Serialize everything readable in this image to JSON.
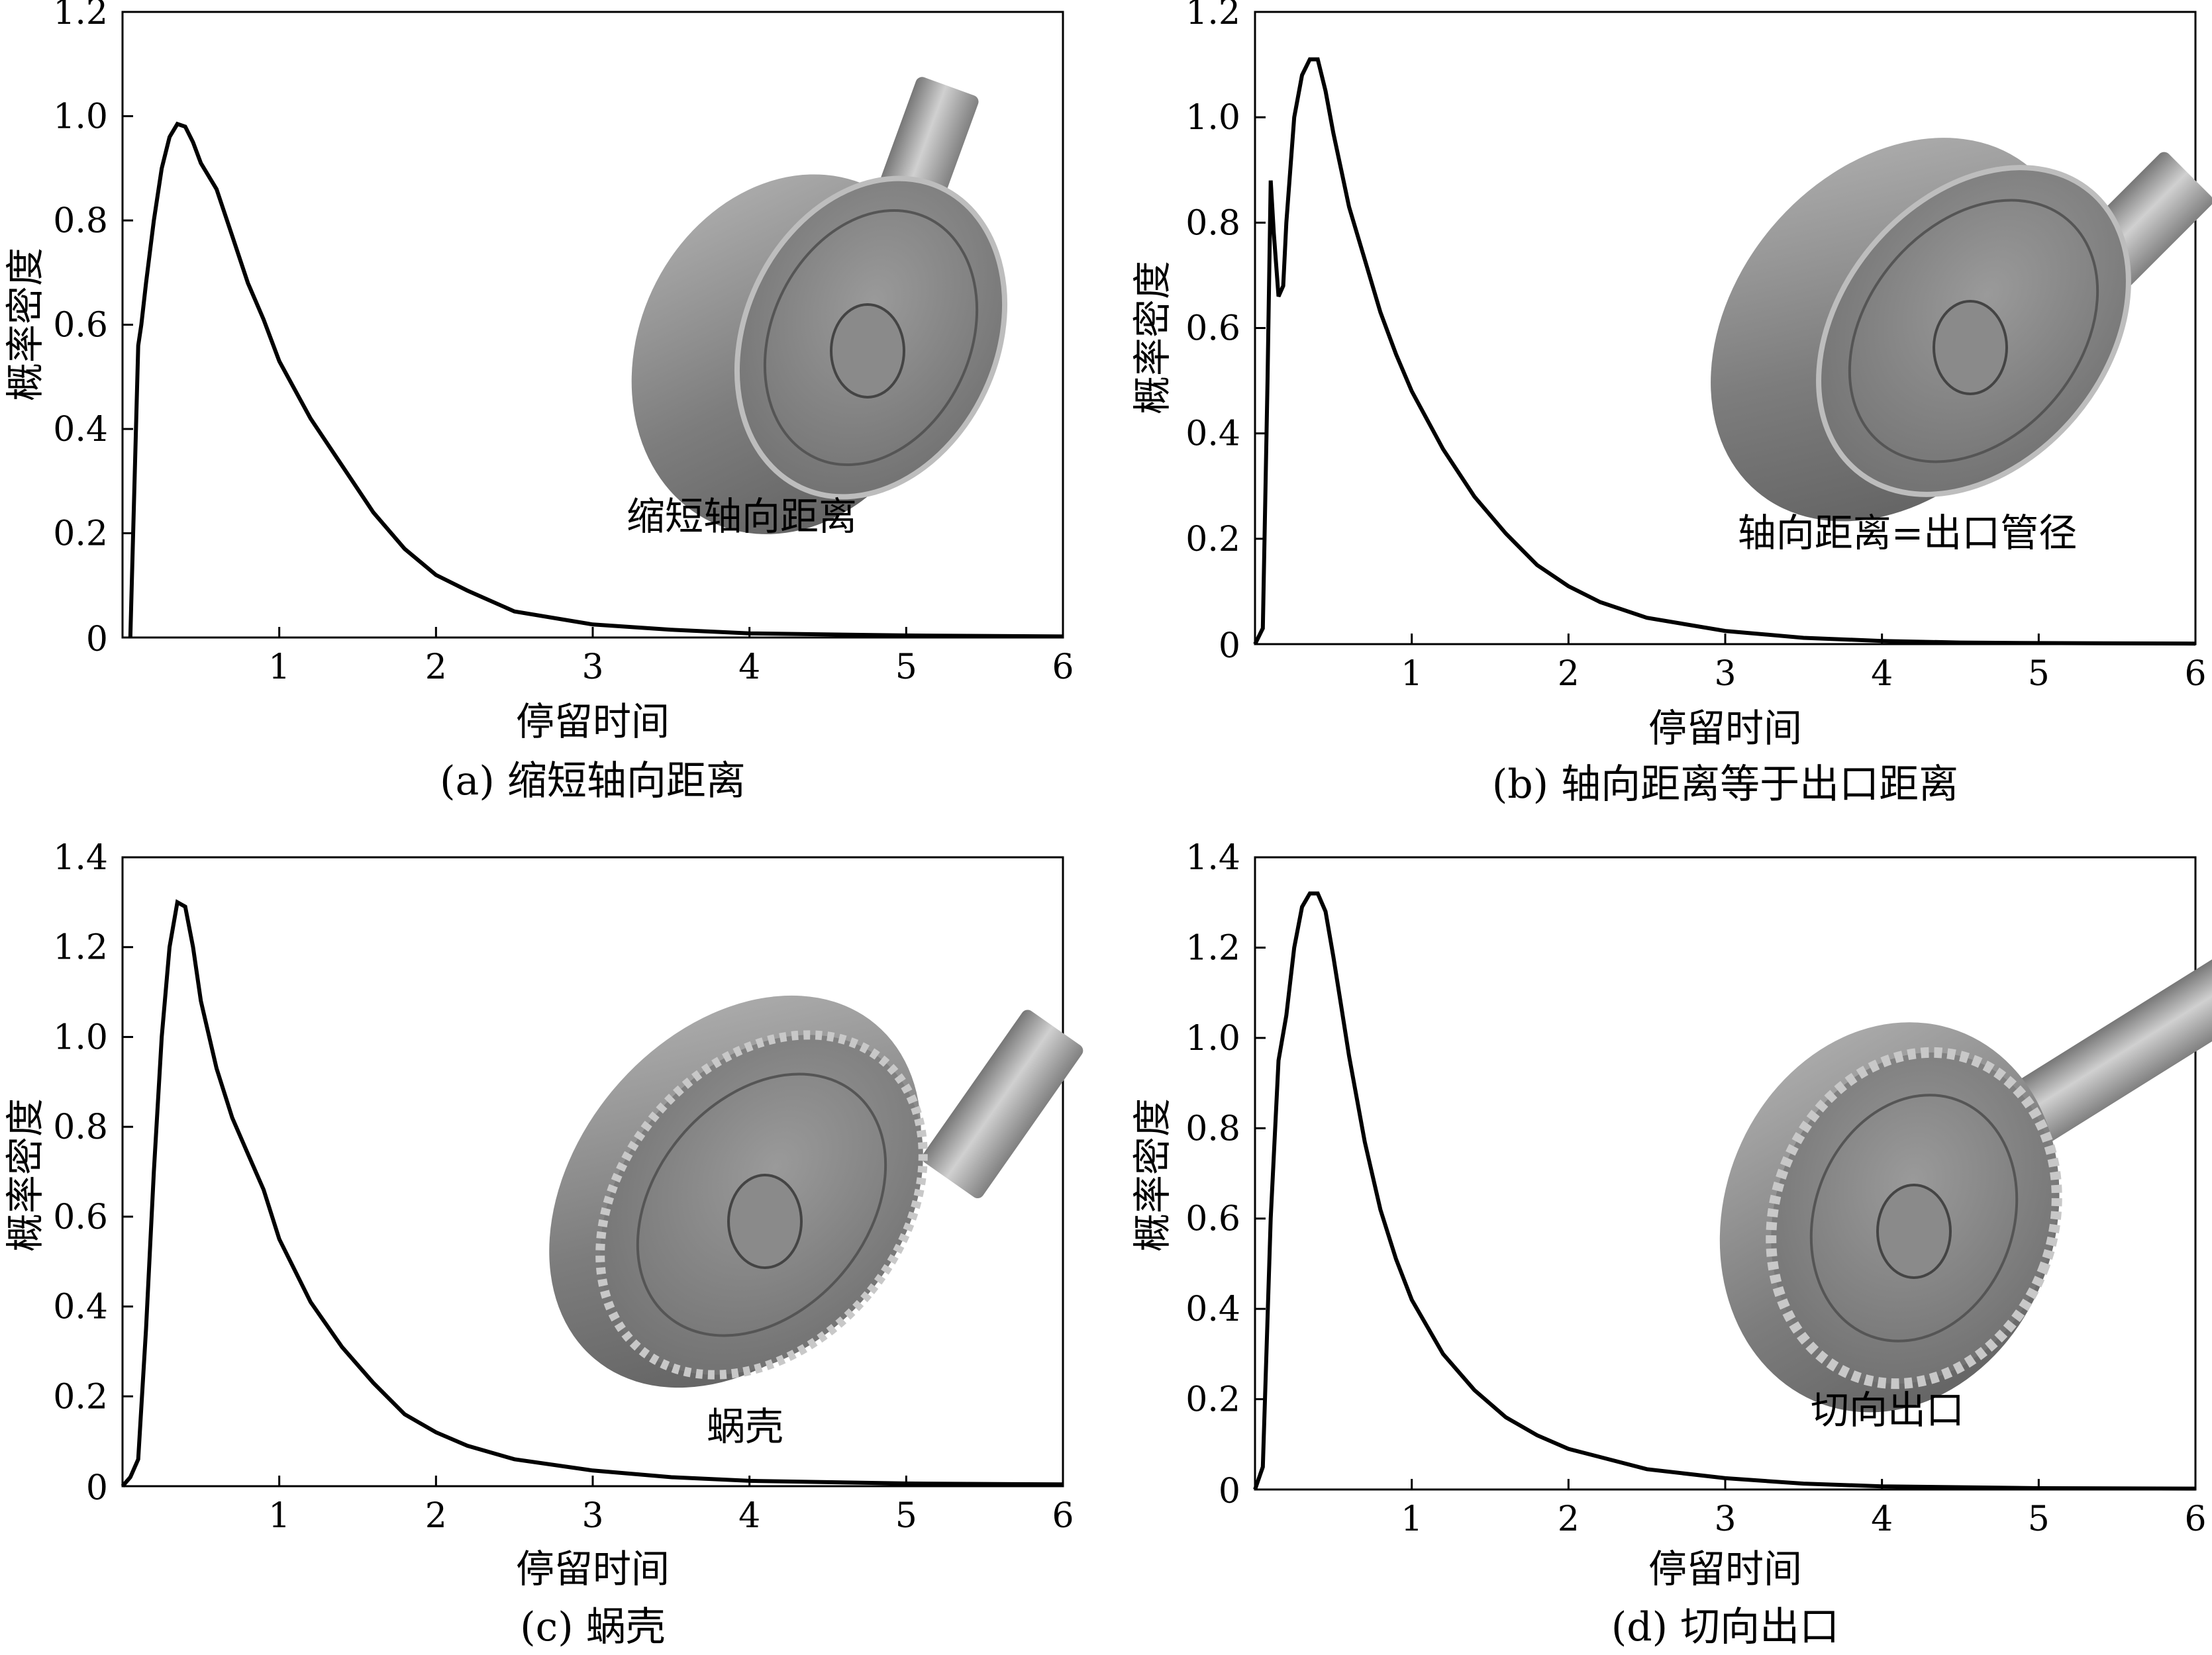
{
  "figure": {
    "panels": [
      {
        "caption": "(a) 缩短轴向距离",
        "inset_label": "缩短轴向距离",
        "inset_icon": "pump-volute-short-axial-icon"
      },
      {
        "caption": "(b) 轴向距离等于出口距离",
        "inset_label": "轴向距离=出口管径",
        "inset_icon": "pump-volute-equal-axial-icon"
      },
      {
        "caption": "(c) 蜗壳",
        "inset_label": "蜗壳",
        "inset_icon": "pump-spiral-volute-icon"
      },
      {
        "caption": "(d) 切向出口",
        "inset_label": "切向出口",
        "inset_icon": "pump-tangential-outlet-icon"
      }
    ]
  },
  "chart_data": [
    {
      "type": "line",
      "title": "(a) 缩短轴向距离",
      "xlabel": "停留时间",
      "ylabel": "概率密度",
      "xlim": [
        0,
        6
      ],
      "ylim": [
        0,
        1.2
      ],
      "xticks": [
        1,
        2,
        3,
        4,
        5,
        6
      ],
      "xtick_labels": [
        "1",
        "2",
        "3",
        "4",
        "5",
        "6"
      ],
      "yticks": [
        0,
        0.2,
        0.4,
        0.6,
        0.8,
        1.0,
        1.2
      ],
      "ytick_labels": [
        "0",
        "0.2",
        "0.4",
        "0.6",
        "0.8",
        "1.0",
        "1.2"
      ],
      "grid": false,
      "series": [
        {
          "name": "缩短轴向距离",
          "x": [
            0.05,
            0.1,
            0.12,
            0.15,
            0.2,
            0.25,
            0.3,
            0.35,
            0.4,
            0.45,
            0.5,
            0.6,
            0.7,
            0.8,
            0.9,
            1.0,
            1.2,
            1.4,
            1.6,
            1.8,
            2.0,
            2.2,
            2.5,
            3.0,
            3.5,
            4.0,
            5.0,
            6.0
          ],
          "y": [
            0.0,
            0.56,
            0.6,
            0.68,
            0.8,
            0.9,
            0.96,
            0.985,
            0.98,
            0.95,
            0.91,
            0.86,
            0.77,
            0.68,
            0.61,
            0.53,
            0.42,
            0.33,
            0.24,
            0.17,
            0.12,
            0.09,
            0.05,
            0.025,
            0.015,
            0.008,
            0.004,
            0.002
          ]
        }
      ]
    },
    {
      "type": "line",
      "title": "(b) 轴向距离等于出口距离",
      "xlabel": "停留时间",
      "ylabel": "概率密度",
      "xlim": [
        0,
        6
      ],
      "ylim": [
        0,
        1.2
      ],
      "xticks": [
        1,
        2,
        3,
        4,
        5,
        6
      ],
      "xtick_labels": [
        "1",
        "2",
        "3",
        "4",
        "5",
        "6"
      ],
      "yticks": [
        0,
        0.2,
        0.4,
        0.6,
        0.8,
        1.0,
        1.2
      ],
      "ytick_labels": [
        "0",
        "0.2",
        "0.4",
        "0.6",
        "0.8",
        "1.0",
        "1.2"
      ],
      "grid": false,
      "series": [
        {
          "name": "轴向距离=出口管径",
          "x": [
            0.0,
            0.05,
            0.08,
            0.1,
            0.12,
            0.15,
            0.18,
            0.2,
            0.25,
            0.3,
            0.35,
            0.4,
            0.45,
            0.5,
            0.55,
            0.6,
            0.7,
            0.8,
            0.9,
            1.0,
            1.2,
            1.4,
            1.6,
            1.8,
            2.0,
            2.2,
            2.5,
            3.0,
            3.5,
            4.0,
            4.5,
            5.0,
            6.0
          ],
          "y": [
            0.0,
            0.03,
            0.5,
            0.88,
            0.78,
            0.66,
            0.68,
            0.8,
            1.0,
            1.08,
            1.11,
            1.11,
            1.05,
            0.97,
            0.9,
            0.83,
            0.73,
            0.63,
            0.55,
            0.48,
            0.37,
            0.28,
            0.21,
            0.15,
            0.11,
            0.08,
            0.05,
            0.025,
            0.012,
            0.006,
            0.003,
            0.002,
            0.001
          ]
        }
      ]
    },
    {
      "type": "line",
      "title": "(c) 蜗壳",
      "xlabel": "停留时间",
      "ylabel": "概率密度",
      "xlim": [
        0,
        6
      ],
      "ylim": [
        0,
        1.4
      ],
      "xticks": [
        1,
        2,
        3,
        4,
        5,
        6
      ],
      "xtick_labels": [
        "1",
        "2",
        "3",
        "4",
        "5",
        "6"
      ],
      "yticks": [
        0,
        0.2,
        0.4,
        0.6,
        0.8,
        1.0,
        1.2,
        1.4
      ],
      "ytick_labels": [
        "0",
        "0.2",
        "0.4",
        "0.6",
        "0.8",
        "1.0",
        "1.2",
        "1.4"
      ],
      "grid": false,
      "series": [
        {
          "name": "蜗壳",
          "x": [
            0.0,
            0.05,
            0.1,
            0.15,
            0.2,
            0.25,
            0.3,
            0.35,
            0.4,
            0.45,
            0.5,
            0.6,
            0.7,
            0.8,
            0.9,
            1.0,
            1.2,
            1.4,
            1.6,
            1.8,
            2.0,
            2.2,
            2.5,
            3.0,
            3.5,
            4.0,
            5.0,
            6.0
          ],
          "y": [
            0.0,
            0.02,
            0.06,
            0.35,
            0.7,
            1.0,
            1.2,
            1.3,
            1.29,
            1.2,
            1.08,
            0.93,
            0.82,
            0.74,
            0.66,
            0.55,
            0.41,
            0.31,
            0.23,
            0.16,
            0.12,
            0.09,
            0.06,
            0.035,
            0.02,
            0.012,
            0.006,
            0.004
          ]
        }
      ]
    },
    {
      "type": "line",
      "title": "(d) 切向出口",
      "xlabel": "停留时间",
      "ylabel": "概率密度",
      "xlim": [
        0,
        6
      ],
      "ylim": [
        0,
        1.4
      ],
      "xticks": [
        1,
        2,
        3,
        4,
        5,
        6
      ],
      "xtick_labels": [
        "1",
        "2",
        "3",
        "4",
        "5",
        "6"
      ],
      "yticks": [
        0,
        0.2,
        0.4,
        0.6,
        0.8,
        1.0,
        1.2,
        1.4
      ],
      "ytick_labels": [
        "0",
        "0.2",
        "0.4",
        "0.6",
        "0.8",
        "1.0",
        "1.2",
        "1.4"
      ],
      "grid": false,
      "series": [
        {
          "name": "切向出口",
          "x": [
            0.0,
            0.05,
            0.1,
            0.15,
            0.2,
            0.25,
            0.3,
            0.35,
            0.4,
            0.45,
            0.5,
            0.55,
            0.6,
            0.7,
            0.8,
            0.9,
            1.0,
            1.2,
            1.4,
            1.6,
            1.8,
            2.0,
            2.5,
            3.0,
            3.5,
            4.0,
            5.0,
            6.0
          ],
          "y": [
            0.0,
            0.05,
            0.6,
            0.95,
            1.05,
            1.2,
            1.29,
            1.32,
            1.32,
            1.28,
            1.18,
            1.07,
            0.96,
            0.77,
            0.62,
            0.51,
            0.42,
            0.3,
            0.22,
            0.16,
            0.12,
            0.09,
            0.045,
            0.025,
            0.013,
            0.007,
            0.003,
            0.002
          ]
        }
      ]
    }
  ]
}
